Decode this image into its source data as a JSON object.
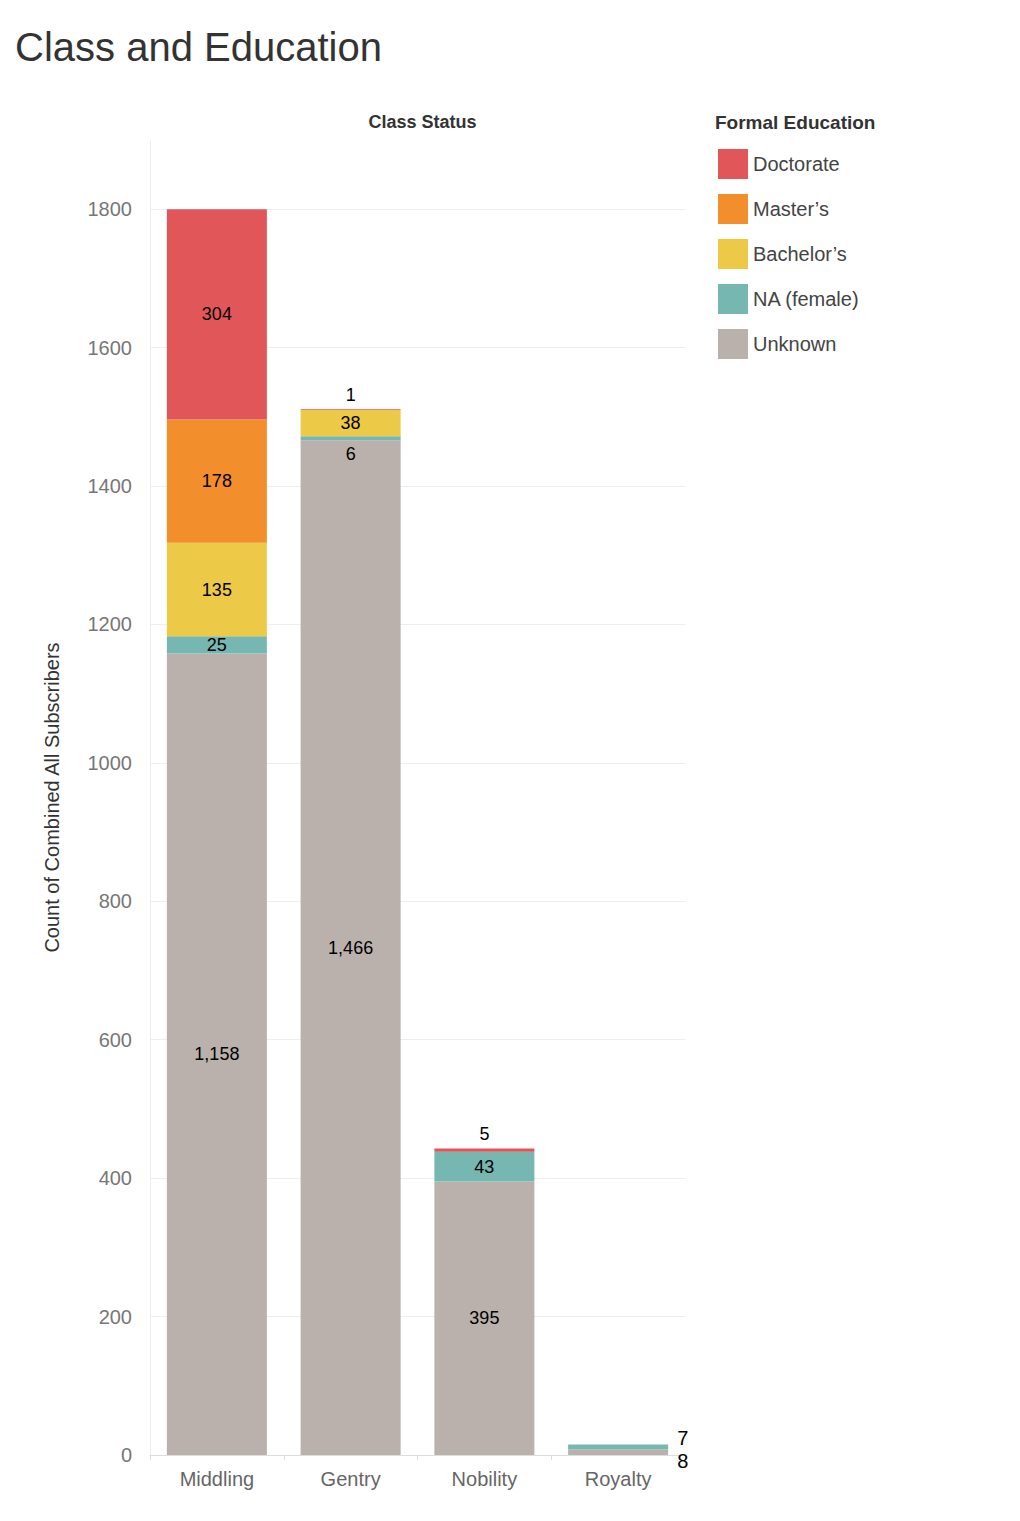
{
  "chart_data": {
    "type": "bar",
    "title": "Class and Education",
    "x_label": "Class Status",
    "y_label": "Count of Combined All Subscribers",
    "legend_title": "Formal Education",
    "categories": [
      "Middling",
      "Gentry",
      "Nobility",
      "Royalty"
    ],
    "series": [
      {
        "name": "Doctorate",
        "color": "#e15759",
        "values": [
          304,
          1,
          5,
          null
        ]
      },
      {
        "name": "Master’s",
        "color": "#f28e2b",
        "values": [
          178,
          null,
          null,
          null
        ]
      },
      {
        "name": "Bachelor’s",
        "color": "#edc948",
        "values": [
          135,
          38,
          null,
          null
        ]
      },
      {
        "name": "NA (female)",
        "color": "#76b7b2",
        "values": [
          25,
          6,
          43,
          7
        ]
      },
      {
        "name": "Unknown",
        "color": "#bab0ac",
        "values": [
          1158,
          1466,
          395,
          8
        ],
        "value_labels": [
          "1,158",
          "1,466",
          "395",
          "8"
        ]
      }
    ],
    "ylim": [
      0,
      1900
    ],
    "yticks": [
      0,
      200,
      400,
      600,
      800,
      1000,
      1200,
      1400,
      1600,
      1800
    ],
    "stacked": true,
    "data_labels": true,
    "grid": true,
    "legend": "right"
  }
}
